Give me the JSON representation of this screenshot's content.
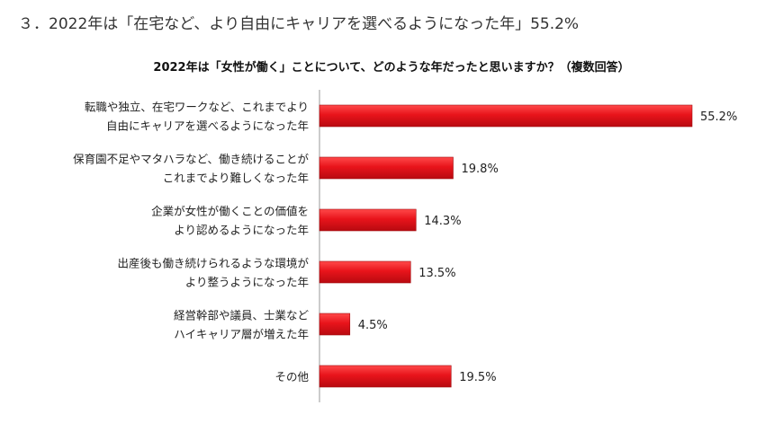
{
  "page": {
    "heading": "３．2022年は「在宅など、より自由にキャリアを選べるようになった年」55.2%"
  },
  "chart_data": {
    "type": "bar",
    "orientation": "horizontal",
    "title": "2022年は「女性が働く」ことについて、どのような年だったと思いますか？（複数回答）",
    "categories": [
      [
        "転職や独立、在宅ワークなど、これまでより",
        "自由にキャリアを選べるようになった年"
      ],
      [
        "保育園不足やマタハラなど、働き続けることが",
        "これまでより難しくなった年"
      ],
      [
        "企業が女性が働くことの価値を",
        "より認めるようになった年"
      ],
      [
        "出産後も働き続けられるような環境が",
        "より整うようになった年"
      ],
      [
        "経営幹部や議員、士業など",
        "ハイキャリア層が増えた年"
      ],
      [
        "その他"
      ]
    ],
    "values": [
      55.2,
      19.8,
      14.3,
      13.5,
      4.5,
      19.5
    ],
    "value_labels": [
      "55.2%",
      "19.8%",
      "14.3%",
      "13.5%",
      "4.5%",
      "19.5%"
    ],
    "bar_color": "#e8141b",
    "xlim": [
      0,
      100
    ]
  }
}
